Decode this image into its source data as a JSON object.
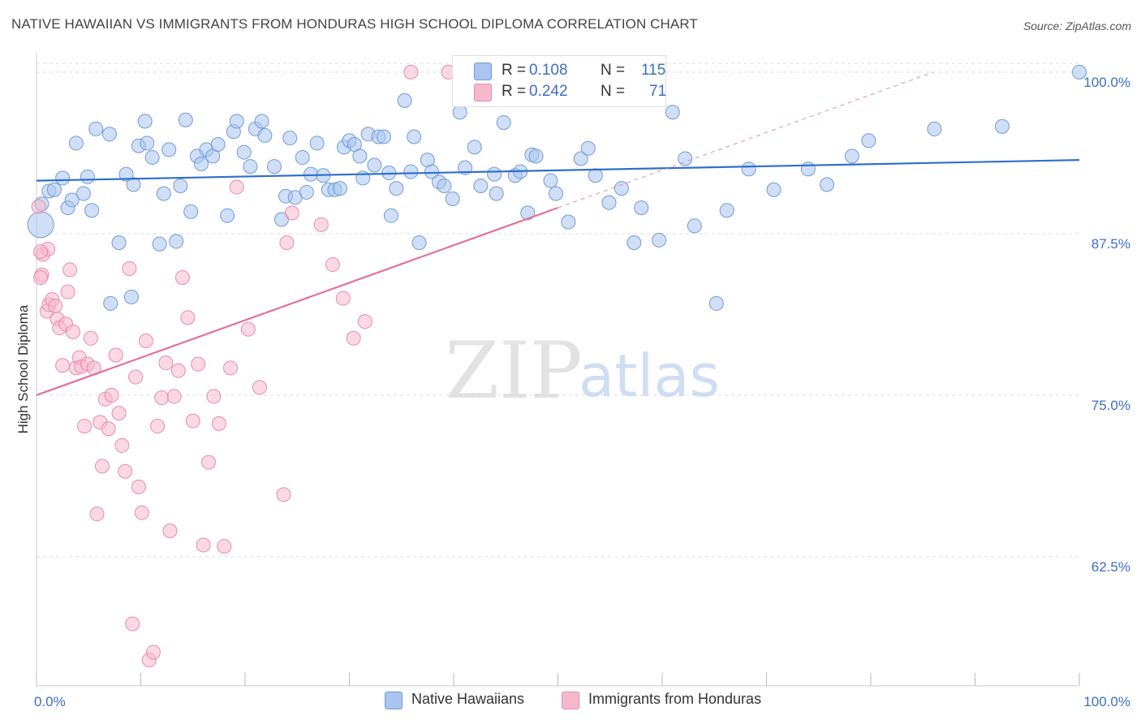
{
  "title": "NATIVE HAWAIIAN VS IMMIGRANTS FROM HONDURAS HIGH SCHOOL DIPLOMA CORRELATION CHART",
  "source": "Source: ZipAtlas.com",
  "watermark": {
    "zip": "ZIP",
    "atlas": "atlas"
  },
  "legend_top": {
    "rows": [
      {
        "r_label": "R =",
        "r_value": "0.108",
        "n_label": "N =",
        "n_value": "115"
      },
      {
        "r_label": "R =",
        "r_value": "0.242",
        "n_label": "N =",
        "n_value": "71"
      }
    ]
  },
  "legend_bottom": [
    "Native Hawaiians",
    "Immigrants from Honduras"
  ],
  "colors": {
    "blue_fill": "#a9c5ef",
    "blue_stroke": "#6f9bd8",
    "blue_line": "#2f6fcb",
    "pink_fill": "#f6b9cc",
    "pink_stroke": "#e98aab",
    "pink_line": "#e2709a",
    "tick_label": "#3b6fc6",
    "grid": "#dddddd"
  },
  "chart_data": {
    "type": "scatter",
    "ylabel": "High School Diploma",
    "xlabel": "",
    "xlim": [
      0,
      100
    ],
    "ylim": [
      52.5,
      101.5
    ],
    "x_tick_labels": [
      {
        "value": 0,
        "label": "0.0%"
      },
      {
        "value": 100,
        "label": "100.0%"
      }
    ],
    "y_ticks": [
      {
        "value": 100,
        "label": "100.0%"
      },
      {
        "value": 87.5,
        "label": "87.5%"
      },
      {
        "value": 75,
        "label": "75.0%"
      },
      {
        "value": 62.5,
        "label": "62.5%"
      }
    ],
    "series": [
      {
        "name": "Native Hawaiians",
        "color": "#a9c5ef",
        "points": [
          [
            0.4,
            88.2
          ],
          [
            0.5,
            89.8
          ],
          [
            1.2,
            90.8
          ],
          [
            1.7,
            90.9
          ],
          [
            2.5,
            91.8
          ],
          [
            3.0,
            89.5
          ],
          [
            3.4,
            90.1
          ],
          [
            3.8,
            94.5
          ],
          [
            4.5,
            90.6
          ],
          [
            4.9,
            91.9
          ],
          [
            5.3,
            89.3
          ],
          [
            5.7,
            95.6
          ],
          [
            7.0,
            95.2
          ],
          [
            7.1,
            82.1
          ],
          [
            7.9,
            86.8
          ],
          [
            8.6,
            92.1
          ],
          [
            9.1,
            82.6
          ],
          [
            9.3,
            91.3
          ],
          [
            9.8,
            94.3
          ],
          [
            10.4,
            96.2
          ],
          [
            10.6,
            94.5
          ],
          [
            11.1,
            93.4
          ],
          [
            11.8,
            86.7
          ],
          [
            12.2,
            90.6
          ],
          [
            12.7,
            94.0
          ],
          [
            13.4,
            86.9
          ],
          [
            13.8,
            91.2
          ],
          [
            14.3,
            96.3
          ],
          [
            14.8,
            89.2
          ],
          [
            15.4,
            93.5
          ],
          [
            15.8,
            92.9
          ],
          [
            16.3,
            94.0
          ],
          [
            16.9,
            93.5
          ],
          [
            17.4,
            94.4
          ],
          [
            18.3,
            88.9
          ],
          [
            18.9,
            95.4
          ],
          [
            19.2,
            96.2
          ],
          [
            19.9,
            93.8
          ],
          [
            20.5,
            92.7
          ],
          [
            21.0,
            95.6
          ],
          [
            21.6,
            96.2
          ],
          [
            21.9,
            95.1
          ],
          [
            22.8,
            92.7
          ],
          [
            23.5,
            88.6
          ],
          [
            23.9,
            90.4
          ],
          [
            24.3,
            94.9
          ],
          [
            24.8,
            90.3
          ],
          [
            25.5,
            93.4
          ],
          [
            25.9,
            90.7
          ],
          [
            26.3,
            92.1
          ],
          [
            26.9,
            94.5
          ],
          [
            27.5,
            92.0
          ],
          [
            28.0,
            90.9
          ],
          [
            28.6,
            90.9
          ],
          [
            29.1,
            91.0
          ],
          [
            29.5,
            94.2
          ],
          [
            30.0,
            94.7
          ],
          [
            30.5,
            94.4
          ],
          [
            31.0,
            93.5
          ],
          [
            31.3,
            91.8
          ],
          [
            31.8,
            95.2
          ],
          [
            32.4,
            92.8
          ],
          [
            32.8,
            95.0
          ],
          [
            33.3,
            95.0
          ],
          [
            33.8,
            92.2
          ],
          [
            34.0,
            88.9
          ],
          [
            34.5,
            91.0
          ],
          [
            35.3,
            97.8
          ],
          [
            35.9,
            92.3
          ],
          [
            36.2,
            95.0
          ],
          [
            36.7,
            86.8
          ],
          [
            37.5,
            93.2
          ],
          [
            37.9,
            92.3
          ],
          [
            38.6,
            91.5
          ],
          [
            39.1,
            91.2
          ],
          [
            39.9,
            90.2
          ],
          [
            40.6,
            96.9
          ],
          [
            41.1,
            92.6
          ],
          [
            42.0,
            94.2
          ],
          [
            42.6,
            91.2
          ],
          [
            43.9,
            92.1
          ],
          [
            44.1,
            90.6
          ],
          [
            44.8,
            96.1
          ],
          [
            45.9,
            92.0
          ],
          [
            46.4,
            92.3
          ],
          [
            47.1,
            89.1
          ],
          [
            47.5,
            93.6
          ],
          [
            47.9,
            93.5
          ],
          [
            49.3,
            91.6
          ],
          [
            49.8,
            90.6
          ],
          [
            51.0,
            88.4
          ],
          [
            52.2,
            93.3
          ],
          [
            52.9,
            94.1
          ],
          [
            53.6,
            92.0
          ],
          [
            54.9,
            89.9
          ],
          [
            56.1,
            91.0
          ],
          [
            57.3,
            86.8
          ],
          [
            58.0,
            89.5
          ],
          [
            59.7,
            87.0
          ],
          [
            61.0,
            96.9
          ],
          [
            62.2,
            93.3
          ],
          [
            63.1,
            88.1
          ],
          [
            65.2,
            82.1
          ],
          [
            66.2,
            89.3
          ],
          [
            68.3,
            92.5
          ],
          [
            70.7,
            90.9
          ],
          [
            74.0,
            92.5
          ],
          [
            75.8,
            91.3
          ],
          [
            78.2,
            93.5
          ],
          [
            79.8,
            94.7
          ],
          [
            86.1,
            95.6
          ],
          [
            92.6,
            95.8
          ],
          [
            100.0,
            100.0
          ]
        ]
      },
      {
        "name": "Immigrants from Honduras",
        "color": "#f6b9cc",
        "points": [
          [
            0.2,
            89.6
          ],
          [
            0.5,
            84.3
          ],
          [
            0.6,
            85.9
          ],
          [
            1.0,
            81.5
          ],
          [
            1.2,
            82.0
          ],
          [
            1.5,
            82.4
          ],
          [
            1.8,
            81.9
          ],
          [
            2.0,
            80.9
          ],
          [
            2.2,
            80.2
          ],
          [
            2.5,
            77.3
          ],
          [
            2.8,
            80.5
          ],
          [
            3.0,
            83.0
          ],
          [
            3.2,
            84.7
          ],
          [
            3.5,
            79.9
          ],
          [
            3.8,
            77.1
          ],
          [
            4.1,
            77.9
          ],
          [
            4.3,
            77.2
          ],
          [
            4.6,
            72.6
          ],
          [
            4.9,
            77.4
          ],
          [
            5.2,
            79.4
          ],
          [
            5.5,
            77.1
          ],
          [
            5.8,
            65.8
          ],
          [
            6.1,
            72.9
          ],
          [
            6.3,
            69.5
          ],
          [
            6.6,
            74.7
          ],
          [
            6.9,
            72.4
          ],
          [
            7.2,
            75.0
          ],
          [
            7.6,
            78.1
          ],
          [
            7.9,
            73.6
          ],
          [
            8.2,
            71.1
          ],
          [
            8.5,
            69.1
          ],
          [
            8.9,
            84.8
          ],
          [
            9.2,
            57.3
          ],
          [
            9.5,
            76.4
          ],
          [
            9.8,
            67.9
          ],
          [
            10.1,
            65.9
          ],
          [
            10.5,
            79.2
          ],
          [
            10.8,
            54.5
          ],
          [
            11.2,
            55.1
          ],
          [
            11.6,
            72.6
          ],
          [
            12.0,
            74.8
          ],
          [
            12.4,
            77.5
          ],
          [
            12.8,
            64.5
          ],
          [
            13.2,
            74.9
          ],
          [
            13.6,
            76.9
          ],
          [
            14.0,
            84.1
          ],
          [
            14.5,
            81.0
          ],
          [
            15.0,
            73.0
          ],
          [
            15.5,
            77.4
          ],
          [
            16.0,
            63.4
          ],
          [
            16.5,
            69.8
          ],
          [
            17.0,
            74.9
          ],
          [
            17.5,
            72.8
          ],
          [
            18.0,
            63.3
          ],
          [
            18.6,
            77.1
          ],
          [
            19.2,
            91.1
          ],
          [
            20.3,
            80.1
          ],
          [
            21.4,
            75.6
          ],
          [
            23.7,
            67.3
          ],
          [
            24.0,
            86.8
          ],
          [
            24.5,
            89.1
          ],
          [
            27.3,
            88.2
          ],
          [
            28.4,
            85.1
          ],
          [
            29.4,
            82.5
          ],
          [
            30.4,
            79.4
          ],
          [
            31.5,
            80.7
          ],
          [
            35.9,
            100.0
          ],
          [
            39.5,
            100.0
          ],
          [
            0.4,
            84.1
          ],
          [
            1.1,
            86.3
          ],
          [
            0.4,
            86.1
          ]
        ]
      }
    ],
    "trendlines": [
      {
        "series": "Native Hawaiians",
        "from": [
          0,
          91.6
        ],
        "to": [
          100,
          93.2
        ]
      },
      {
        "series": "Immigrants from Honduras",
        "from": [
          0,
          75.0
        ],
        "to": [
          50,
          89.5
        ],
        "dashed_extension_to": [
          86,
          100
        ]
      }
    ],
    "grid": true,
    "legend_placement": "top-center and bottom"
  }
}
